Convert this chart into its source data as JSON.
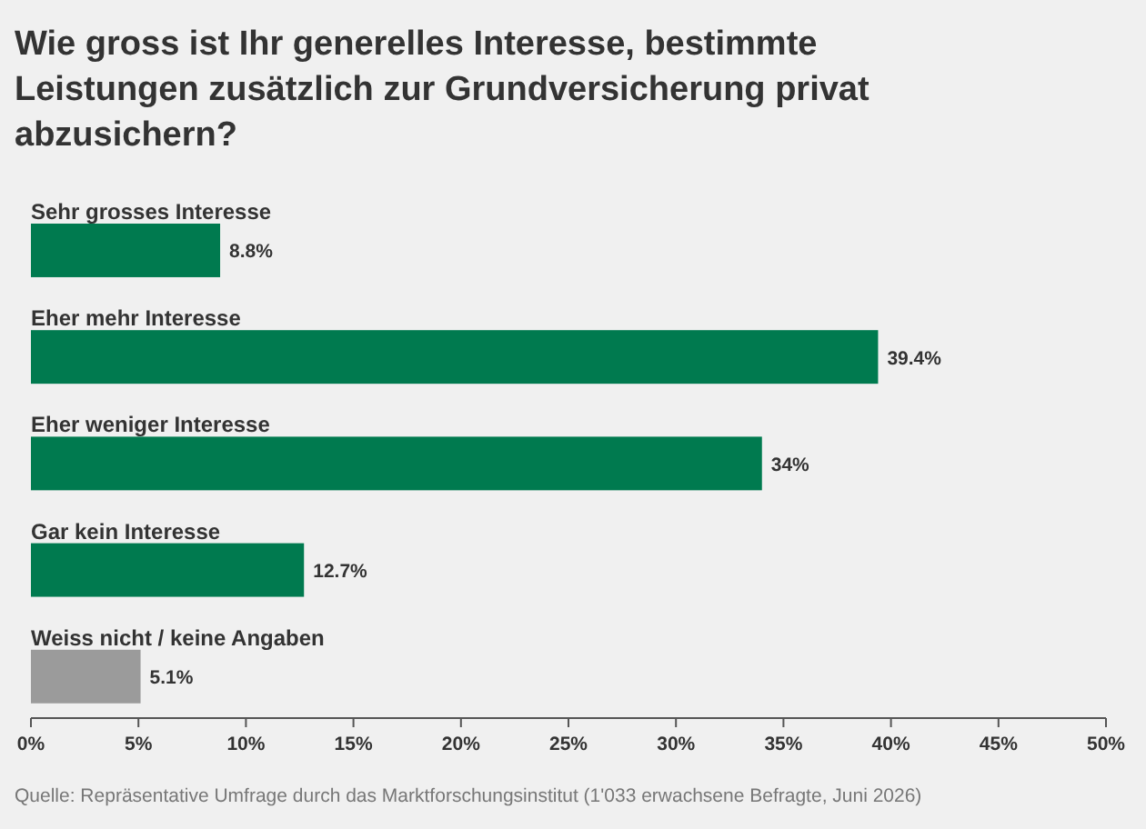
{
  "chart_data": {
    "type": "bar",
    "orientation": "horizontal",
    "title": "Wie gross ist Ihr generelles Interesse, bestimmte Leistungen zusätzlich zur Grundversicherung privat abzusichern?",
    "categories": [
      "Sehr grosses Interesse",
      "Eher mehr Interesse",
      "Eher weniger Interesse",
      "Gar kein Interesse",
      "Weiss nicht / keine Angaben"
    ],
    "values": [
      8.8,
      39.4,
      34,
      12.7,
      5.1
    ],
    "colors": [
      "#007a4f",
      "#007a4f",
      "#007a4f",
      "#007a4f",
      "#9b9b9b"
    ],
    "value_labels": [
      "8.8%",
      "39.4%",
      "34%",
      "12.7%",
      "5.1%"
    ],
    "xlim": [
      0,
      50
    ],
    "xticks": [
      {
        "value": 0,
        "label": "0%"
      },
      {
        "value": 5,
        "label": "5%"
      },
      {
        "value": 10,
        "label": "10%"
      },
      {
        "value": 15,
        "label": "15%"
      },
      {
        "value": 20,
        "label": "20%"
      },
      {
        "value": 25,
        "label": "25%"
      },
      {
        "value": 30,
        "label": "30%"
      },
      {
        "value": 35,
        "label": "35%"
      },
      {
        "value": 40,
        "label": "40%"
      },
      {
        "value": 45,
        "label": "45%"
      },
      {
        "value": 50,
        "label": "50%"
      }
    ],
    "annotations": [
      "Quelle: Repräsentative Umfrage durch das Marktforschungsinstitut (1'033 erwachsene Befragte, Juni 2026)"
    ]
  }
}
